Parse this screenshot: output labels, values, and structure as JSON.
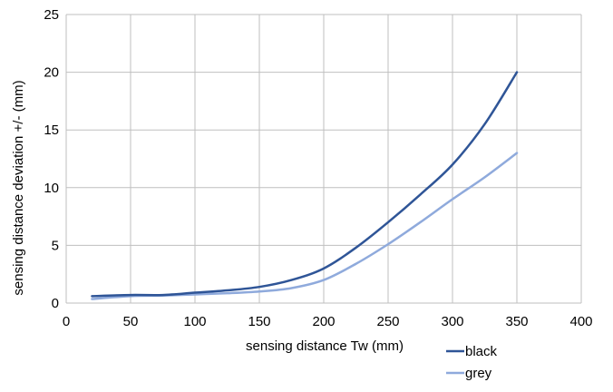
{
  "chart_data": {
    "type": "line",
    "title": "",
    "xlabel": "sensing distance Tw (mm)",
    "ylabel": "sensing distance deviation +/- (mm)",
    "xlim": [
      0,
      400
    ],
    "ylim": [
      0,
      25
    ],
    "xticks": [
      0,
      50,
      100,
      150,
      200,
      250,
      300,
      350,
      400
    ],
    "yticks": [
      0,
      5,
      10,
      15,
      20,
      25
    ],
    "grid": true,
    "legend_position": "bottom-right",
    "series": [
      {
        "name": "black",
        "color": "#2f5597",
        "x": [
          20,
          50,
          75,
          100,
          125,
          150,
          175,
          200,
          225,
          250,
          275,
          300,
          325,
          350
        ],
        "y": [
          0.6,
          0.7,
          0.7,
          0.9,
          1.1,
          1.4,
          2.0,
          3.0,
          4.8,
          7.0,
          9.4,
          12.0,
          15.5,
          20.0
        ]
      },
      {
        "name": "grey",
        "color": "#8faadc",
        "x": [
          20,
          50,
          75,
          100,
          125,
          150,
          175,
          200,
          225,
          250,
          275,
          300,
          325,
          350
        ],
        "y": [
          0.35,
          0.6,
          0.65,
          0.75,
          0.85,
          1.0,
          1.3,
          2.0,
          3.4,
          5.1,
          7.0,
          9.0,
          10.9,
          13.0
        ]
      }
    ]
  }
}
